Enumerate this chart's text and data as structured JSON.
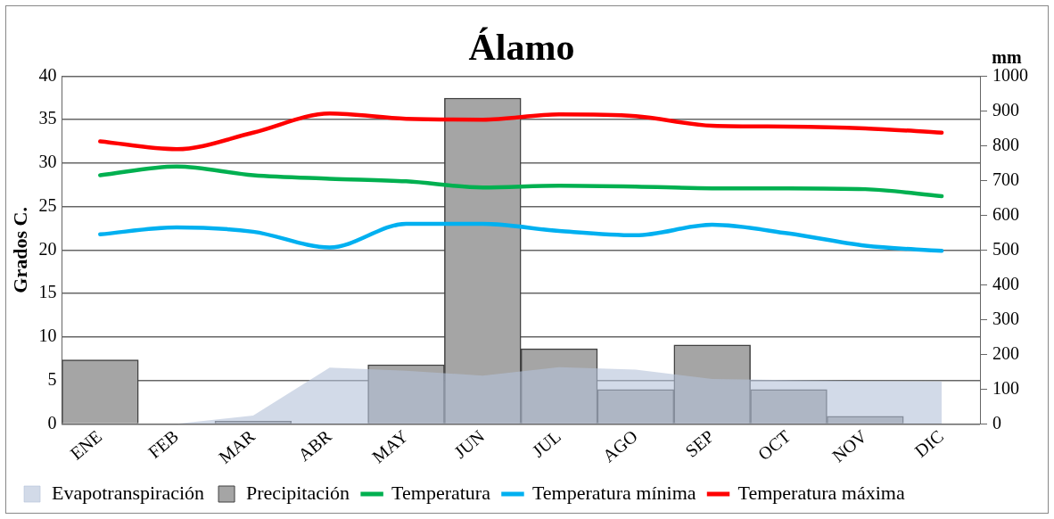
{
  "chart_data": {
    "type": "bar",
    "title": "Álamo",
    "ylabel": "Grados C.",
    "y2label": "mm",
    "categories": [
      "ENE",
      "FEB",
      "MAR",
      "ABR",
      "MAY",
      "JUN",
      "JUL",
      "AGO",
      "SEP",
      "OCT",
      "NOV",
      "DIC"
    ],
    "series": [
      {
        "name": "Evapotranspiración",
        "type": "area",
        "axis": "y2",
        "color": "#b4c2d8",
        "values": [
          0,
          0,
          24,
          162,
          153,
          139,
          163,
          156,
          129,
          126,
          123,
          122
        ]
      },
      {
        "name": "Precipitación",
        "axis": "y2",
        "color": "#a5a5a5",
        "values": [
          184,
          0,
          8,
          0,
          170,
          937,
          216,
          99,
          227,
          99,
          22,
          0
        ]
      },
      {
        "name": "Temperatura",
        "type": "line",
        "color": "#00b050",
        "values": [
          28.6,
          29.6,
          28.6,
          28.2,
          27.9,
          27.2,
          27.4,
          27.3,
          27.1,
          27.1,
          27.0,
          26.2
        ]
      },
      {
        "name": "Temperatura mínima",
        "type": "line",
        "color": "#00b0f0",
        "values": [
          21.8,
          22.6,
          22.1,
          20.3,
          23.0,
          23.0,
          22.2,
          21.7,
          22.9,
          21.9,
          20.5,
          19.9
        ]
      },
      {
        "name": "Temperatura máxima",
        "type": "line",
        "color": "#ff0000",
        "values": [
          32.5,
          31.6,
          33.5,
          35.7,
          35.1,
          35.0,
          35.6,
          35.4,
          34.3,
          34.2,
          34.0,
          33.5
        ]
      }
    ],
    "ylim": [
      0,
      40
    ],
    "yticks": [
      0,
      5,
      10,
      15,
      20,
      25,
      30,
      35,
      40
    ],
    "y2lim": [
      0,
      1000
    ],
    "y2ticks": [
      0,
      100,
      200,
      300,
      400,
      500,
      600,
      700,
      800,
      900,
      1000
    ],
    "grid": "y",
    "legend": "bottom",
    "marker": "none",
    "line_style": "solid"
  }
}
